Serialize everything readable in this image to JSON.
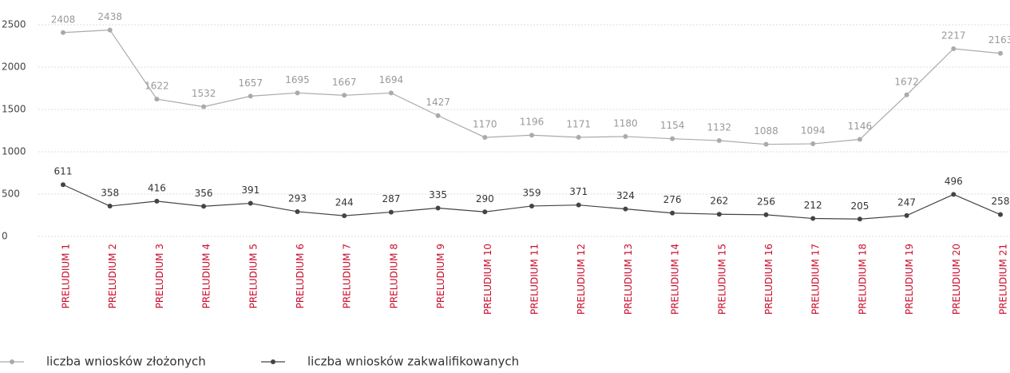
{
  "chart_data": {
    "type": "line",
    "categories": [
      "PRELUDIUM 1",
      "PRELUDIUM 2",
      "PRELUDIUM 3",
      "PRELUDIUM 4",
      "PRELUDIUM 5",
      "PRELUDIUM 6",
      "PRELUDIUM 7",
      "PRELUDIUM 8",
      "PRELUDIUM 9",
      "PRELUDIUM 10",
      "PRELUDIUM 11",
      "PRELUDIUM 12",
      "PRELUDIUM 13",
      "PRELUDIUM 14",
      "PRELUDIUM 15",
      "PRELUDIUM 16",
      "PRELUDIUM 17",
      "PRELUDIUM 18",
      "PRELUDIUM 19",
      "PRELUDIUM 20",
      "PRELUDIUM 21"
    ],
    "series": [
      {
        "name": "liczba wniosków złożonych",
        "color": "#aaaaaa",
        "label_color": "#999999",
        "values": [
          2408,
          2438,
          1622,
          1532,
          1657,
          1695,
          1667,
          1694,
          1427,
          1170,
          1196,
          1171,
          1180,
          1154,
          1132,
          1088,
          1094,
          1146,
          1672,
          2217,
          2163
        ]
      },
      {
        "name": "liczba wniosków zakwalifikowanych",
        "color": "#444444",
        "label_color": "#333333",
        "values": [
          611,
          358,
          416,
          356,
          391,
          293,
          244,
          287,
          335,
          290,
          359,
          371,
          324,
          276,
          262,
          256,
          212,
          205,
          247,
          496,
          258
        ]
      }
    ],
    "ylim": [
      0,
      2500
    ],
    "yticks": [
      0,
      500,
      1000,
      1500,
      2000,
      2500
    ],
    "grid": true,
    "category_color": "#c8102e"
  }
}
